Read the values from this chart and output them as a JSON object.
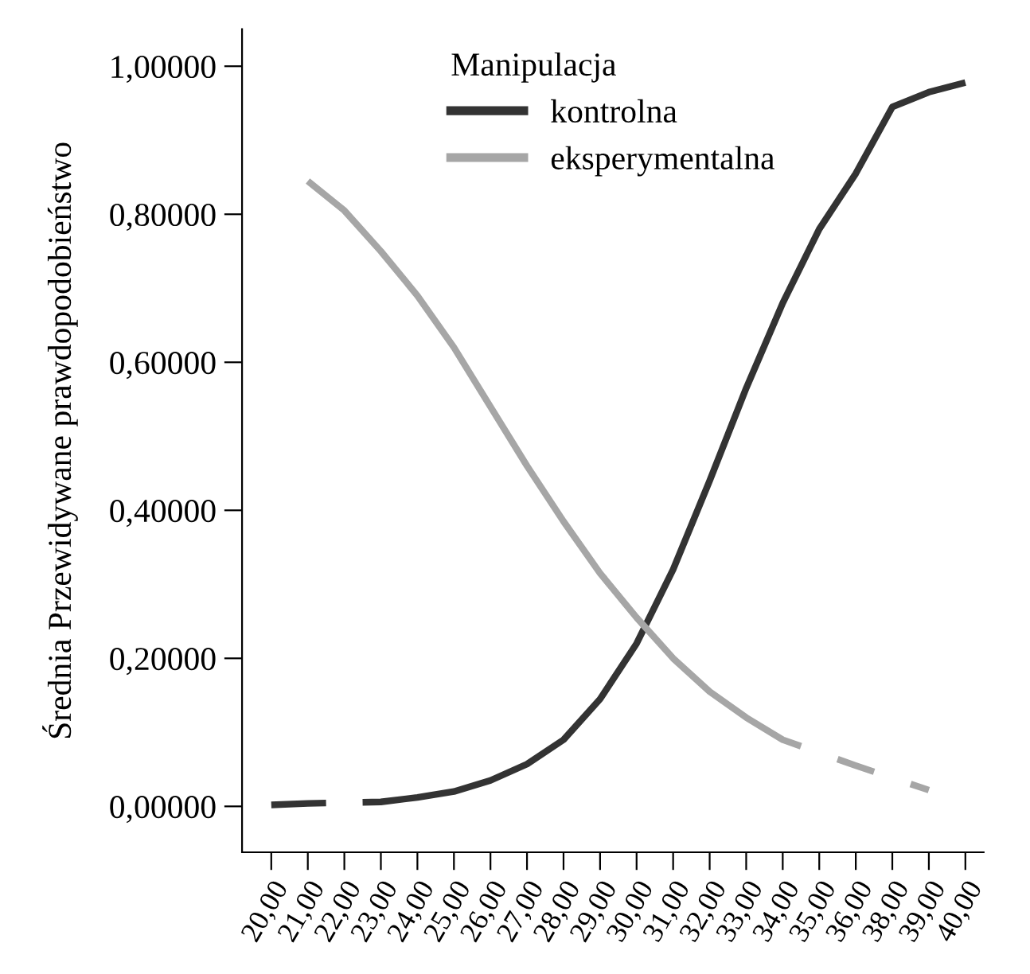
{
  "chart_data": {
    "type": "line",
    "ylabel": "Średnia Przewidywane prawdopodobieństwo",
    "legend_title": "Manipulacja",
    "categories": [
      "20,00",
      "21,00",
      "22,00",
      "23,00",
      "24,00",
      "25,00",
      "26,00",
      "27,00",
      "28,00",
      "29,00",
      "30,00",
      "31,00",
      "32,00",
      "33,00",
      "34,00",
      "35,00",
      "36,00",
      "38,00",
      "39,00",
      "40,00"
    ],
    "series": [
      {
        "name": "kontrolna",
        "color": "#333333",
        "values": [
          0.002,
          0.004,
          null,
          0.006,
          0.012,
          0.02,
          0.035,
          0.057,
          0.09,
          0.145,
          0.22,
          0.32,
          0.44,
          0.565,
          0.68,
          0.78,
          0.855,
          0.945,
          0.965,
          0.978
        ]
      },
      {
        "name": "eksperymentalna",
        "color": "#a6a6a6",
        "values": [
          null,
          0.845,
          0.805,
          0.75,
          0.69,
          0.62,
          0.54,
          0.46,
          0.385,
          0.315,
          0.255,
          0.2,
          0.155,
          0.12,
          0.09,
          null,
          0.055,
          null,
          0.022,
          null
        ]
      }
    ],
    "ylim": [
      -0.062,
      1.05
    ],
    "yticks": [
      {
        "value": 0,
        "label": "0,00000"
      },
      {
        "value": 0.2,
        "label": "0,20000"
      },
      {
        "value": 0.4,
        "label": "0,40000"
      },
      {
        "value": 0.6,
        "label": "0,60000"
      },
      {
        "value": 0.8,
        "label": "0,80000"
      },
      {
        "value": 1.0,
        "label": "1,00000"
      }
    ],
    "grid": false,
    "legend": "top",
    "marker": "none",
    "line_style": "solid"
  }
}
